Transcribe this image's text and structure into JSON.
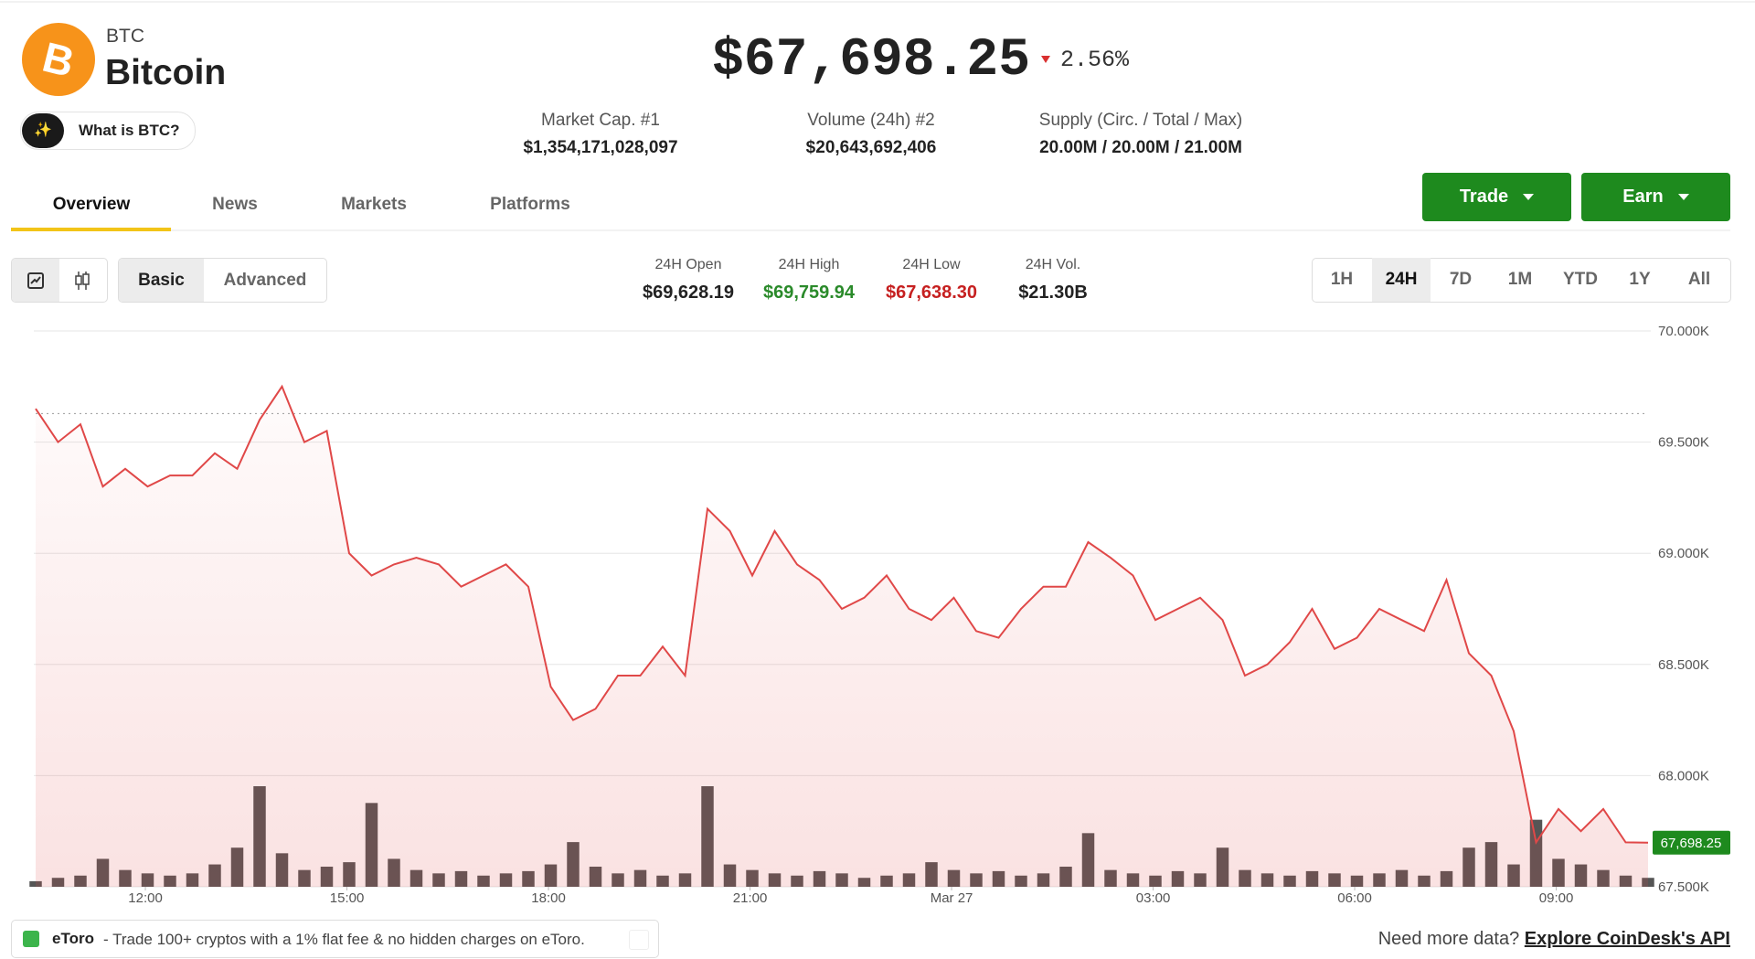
{
  "header": {
    "symbol": "BTC",
    "name": "Bitcoin",
    "ai_button": "What is BTC?",
    "price": "$67,698.25",
    "change": "2.56%"
  },
  "stats": [
    {
      "label": "Market Cap. #1",
      "value": "$1,354,171,028,097"
    },
    {
      "label": "Volume (24h) #2",
      "value": "$20,643,692,406"
    },
    {
      "label": "Supply (Circ. / Total / Max)",
      "value": "20.00M / 20.00M / 21.00M"
    }
  ],
  "tabs": [
    "Overview",
    "News",
    "Markets",
    "Platforms"
  ],
  "actions": [
    "Trade",
    "Earn"
  ],
  "chart_modes": [
    "Basic",
    "Advanced"
  ],
  "day_stats": [
    {
      "label": "24H Open",
      "value": "$69,628.19"
    },
    {
      "label": "24H High",
      "value": "$69,759.94"
    },
    {
      "label": "24H Low",
      "value": "$67,638.30"
    },
    {
      "label": "24H Vol.",
      "value": "$21.30B"
    }
  ],
  "ranges": [
    "1H",
    "24H",
    "7D",
    "1M",
    "YTD",
    "1Y",
    "All"
  ],
  "chart_data": {
    "type": "line",
    "color": "#e04848",
    "grid": true,
    "values": [
      69650,
      69500,
      69580,
      69300,
      69380,
      69300,
      69350,
      69350,
      69450,
      69380,
      69600,
      69750,
      69500,
      69550,
      69000,
      68900,
      68950,
      68980,
      68950,
      68850,
      68900,
      68950,
      68850,
      68400,
      68250,
      68300,
      68450,
      68450,
      68580,
      68450,
      69200,
      69100,
      68900,
      69100,
      68950,
      68880,
      68750,
      68800,
      68900,
      68750,
      68700,
      68800,
      68650,
      68620,
      68750,
      68850,
      68850,
      69050,
      68980,
      68900,
      68700,
      68750,
      68800,
      68700,
      68450,
      68500,
      68600,
      68750,
      68570,
      68620,
      68750,
      68700,
      68650,
      68880,
      68550,
      68450,
      68200,
      67700,
      67850,
      67750,
      67850,
      67700,
      67698.25
    ],
    "value_labels": [
      null,
      null,
      null,
      null,
      null,
      null,
      null,
      null,
      null,
      null,
      null,
      null,
      null,
      null,
      null,
      null,
      null,
      null,
      null,
      null,
      null,
      null,
      null,
      null,
      null,
      null,
      null,
      null,
      null,
      null,
      null,
      null,
      null,
      null,
      null,
      null,
      null,
      null,
      null,
      null,
      null,
      null,
      null,
      null,
      null,
      null,
      null,
      null,
      null,
      null,
      null,
      null,
      null,
      null,
      null,
      null,
      null,
      null,
      null,
      null,
      null,
      null,
      null,
      null,
      null,
      null,
      null,
      null,
      null,
      null,
      null,
      null,
      "67,698.25"
    ],
    "volume": [
      5,
      8,
      10,
      25,
      15,
      12,
      10,
      12,
      20,
      35,
      90,
      30,
      15,
      18,
      22,
      75,
      25,
      15,
      12,
      14,
      10,
      12,
      14,
      20,
      40,
      18,
      12,
      15,
      10,
      12,
      90,
      20,
      15,
      12,
      10,
      14,
      12,
      8,
      10,
      12,
      22,
      15,
      12,
      14,
      10,
      12,
      18,
      48,
      15,
      12,
      10,
      14,
      12,
      35,
      15,
      12,
      10,
      14,
      12,
      10,
      12,
      15,
      10,
      14,
      35,
      40,
      20,
      60,
      25,
      20,
      15,
      10,
      8
    ],
    "volume_color": "#555555",
    "reference_line": 69628.19,
    "xlim": [
      0,
      72
    ],
    "xticks": [
      {
        "value": 4.9,
        "label": "12:00"
      },
      {
        "value": 13.9,
        "label": "15:00"
      },
      {
        "value": 22.9,
        "label": "18:00"
      },
      {
        "value": 31.9,
        "label": "21:00"
      },
      {
        "value": 40.9,
        "label": "Mar 27"
      },
      {
        "value": 49.9,
        "label": "03:00"
      },
      {
        "value": 58.9,
        "label": "06:00"
      },
      {
        "value": 67.9,
        "label": "09:00"
      }
    ],
    "ylim": [
      67500,
      70000
    ],
    "yticks": [
      {
        "value": 70000,
        "label": "70.000K"
      },
      {
        "value": 69500,
        "label": "69.500K"
      },
      {
        "value": 69000,
        "label": "69.000K"
      },
      {
        "value": 68500,
        "label": "68.500K"
      },
      {
        "value": 68000,
        "label": "68.000K"
      },
      {
        "value": 67500,
        "label": "67.500K"
      }
    ]
  },
  "footer": {
    "ad_brand": "eToro",
    "ad_text": "- Trade 100+ cryptos with a 1% flat fee & no hidden charges on eToro.",
    "more_prompt": "Need more data?",
    "more_link": "Explore CoinDesk's API"
  }
}
